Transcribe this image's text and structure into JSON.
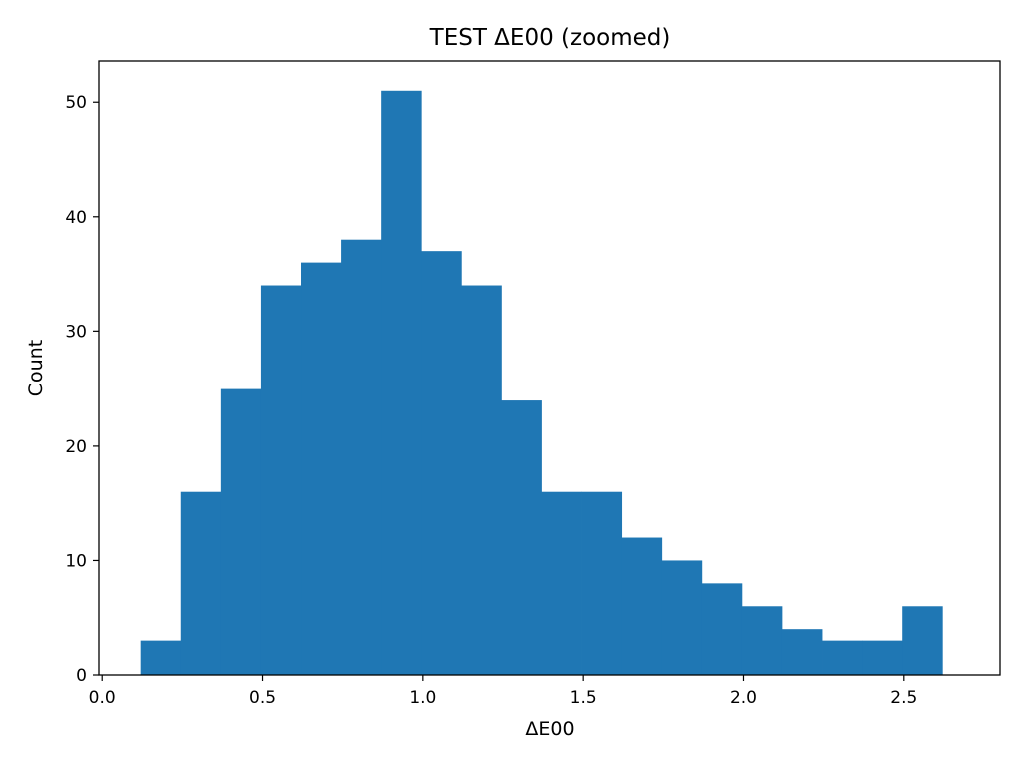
{
  "chart_data": {
    "type": "bar",
    "title": "TEST ΔE00 (zoomed)",
    "xlabel": "ΔE00",
    "ylabel": "Count",
    "xlim": [
      -0.01,
      2.8
    ],
    "ylim": [
      0,
      53.6
    ],
    "xticks": [
      0.0,
      0.5,
      1.0,
      1.5,
      2.0,
      2.5
    ],
    "xtick_labels": [
      "0.0",
      "0.5",
      "1.0",
      "1.5",
      "2.0",
      "2.5"
    ],
    "yticks": [
      0,
      10,
      20,
      30,
      40,
      50
    ],
    "ytick_labels": [
      "0",
      "10",
      "20",
      "30",
      "40",
      "50"
    ],
    "grid": false,
    "bar_color": "#1f77b4",
    "bins": [
      {
        "x0": 0.12,
        "x1": 0.245,
        "count": 3
      },
      {
        "x0": 0.245,
        "x1": 0.37,
        "count": 16
      },
      {
        "x0": 0.37,
        "x1": 0.495,
        "count": 25
      },
      {
        "x0": 0.495,
        "x1": 0.62,
        "count": 34
      },
      {
        "x0": 0.62,
        "x1": 0.745,
        "count": 36
      },
      {
        "x0": 0.745,
        "x1": 0.87,
        "count": 38
      },
      {
        "x0": 0.87,
        "x1": 0.995,
        "count": 51
      },
      {
        "x0": 0.995,
        "x1": 1.12,
        "count": 37
      },
      {
        "x0": 1.12,
        "x1": 1.245,
        "count": 34
      },
      {
        "x0": 1.245,
        "x1": 1.37,
        "count": 24
      },
      {
        "x0": 1.37,
        "x1": 1.495,
        "count": 16
      },
      {
        "x0": 1.495,
        "x1": 1.62,
        "count": 16
      },
      {
        "x0": 1.62,
        "x1": 1.745,
        "count": 12
      },
      {
        "x0": 1.745,
        "x1": 1.87,
        "count": 10
      },
      {
        "x0": 1.87,
        "x1": 1.995,
        "count": 8
      },
      {
        "x0": 1.995,
        "x1": 2.12,
        "count": 6
      },
      {
        "x0": 2.12,
        "x1": 2.245,
        "count": 4
      },
      {
        "x0": 2.245,
        "x1": 2.37,
        "count": 3
      },
      {
        "x0": 2.37,
        "x1": 2.495,
        "count": 3
      },
      {
        "x0": 2.495,
        "x1": 2.62,
        "count": 6
      }
    ]
  }
}
